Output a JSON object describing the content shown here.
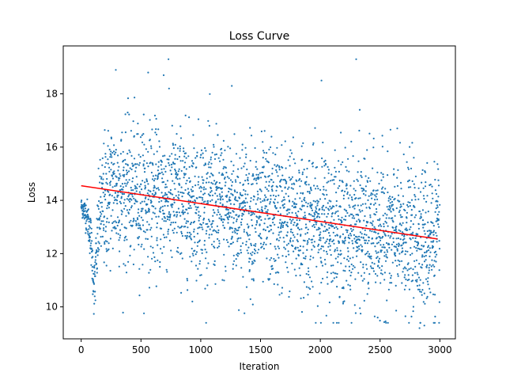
{
  "chart_data": {
    "type": "scatter",
    "title": "Loss Curve",
    "xlabel": "Iteration",
    "ylabel": "Loss",
    "xlim": [
      -150,
      3130
    ],
    "ylim": [
      8.8,
      19.8
    ],
    "x_ticks": [
      0,
      500,
      1000,
      1500,
      2000,
      2500,
      3000
    ],
    "y_ticks": [
      10,
      12,
      14,
      16,
      18
    ],
    "grid": false,
    "legend": "none",
    "point_color": "#1f77b4",
    "trend_color": "#ff0000",
    "n_points": 3000,
    "series": [
      {
        "type": "scatter",
        "x_range": [
          0,
          2999
        ],
        "center_profile": [
          {
            "x": 0,
            "y": 13.8
          },
          {
            "x": 50,
            "y": 13.4
          },
          {
            "x": 80,
            "y": 12.6
          },
          {
            "x": 110,
            "y": 10.6
          },
          {
            "x": 150,
            "y": 13.4
          },
          {
            "x": 250,
            "y": 14.4
          },
          {
            "x": 500,
            "y": 14.2
          },
          {
            "x": 1000,
            "y": 13.9
          },
          {
            "x": 1500,
            "y": 13.5
          },
          {
            "x": 2000,
            "y": 13.2
          },
          {
            "x": 2500,
            "y": 12.8
          },
          {
            "x": 3000,
            "y": 12.5
          }
        ],
        "spread_profile": [
          {
            "x": 0,
            "y": 0.15
          },
          {
            "x": 100,
            "y": 0.5
          },
          {
            "x": 200,
            "y": 1.3
          },
          {
            "x": 3000,
            "y": 1.35
          }
        ],
        "outliers": [
          {
            "x": 290,
            "y": 18.9
          },
          {
            "x": 560,
            "y": 18.8
          },
          {
            "x": 730,
            "y": 19.3
          },
          {
            "x": 690,
            "y": 18.7
          },
          {
            "x": 1260,
            "y": 18.3
          },
          {
            "x": 2010,
            "y": 18.5
          },
          {
            "x": 2300,
            "y": 19.3
          },
          {
            "x": 2330,
            "y": 17.4
          },
          {
            "x": 2870,
            "y": 9.3
          },
          {
            "x": 2830,
            "y": 9.2
          },
          {
            "x": 2480,
            "y": 9.6
          }
        ]
      },
      {
        "type": "line",
        "x": [
          0,
          2980
        ],
        "y": [
          14.55,
          12.55
        ]
      }
    ]
  }
}
